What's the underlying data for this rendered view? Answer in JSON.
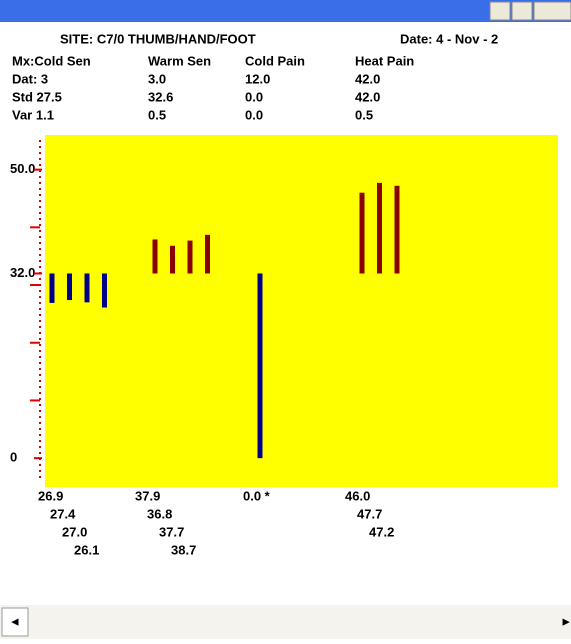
{
  "header": {
    "title": "SITE: C7/0  THUMB/HAND/FOOT",
    "date": "Date: 4 - Nov - 2"
  },
  "table": {
    "columns": [
      "Mx:Cold Sen",
      "Warm Sen",
      "Cold Pain",
      "Heat Pain"
    ],
    "rows": [
      [
        "Dat: 3",
        "3.0",
        "12.0",
        "42.0"
      ],
      [
        "Std 27.5",
        "32.6",
        "0.0",
        "42.0"
      ],
      [
        "Var 1.1",
        "0.5",
        "0.0",
        "0.5"
      ]
    ]
  },
  "chart_data": {
    "type": "bar",
    "baseline": 32,
    "ylim": [
      -5,
      56
    ],
    "yticks": [
      {
        "value": 50,
        "label": "50.0"
      },
      {
        "value": 32,
        "label": "32.0"
      },
      0
    ],
    "minor_yticks": [
      10,
      20,
      30,
      40
    ],
    "series": [
      {
        "name": "Cold Sen",
        "color": "#00008b",
        "values": [
          26.9,
          27.4,
          27.0,
          26.1
        ],
        "value_labels": [
          "26.9",
          "27.4",
          "27.0",
          "26.1"
        ]
      },
      {
        "name": "Warm Sen",
        "color": "#8b0000",
        "values": [
          37.9,
          36.8,
          37.7,
          38.7
        ],
        "value_labels": [
          "37.9",
          "36.8",
          "37.7",
          "38.7"
        ]
      },
      {
        "name": "Cold Pain",
        "color": "#00008b",
        "values": [
          0.0
        ],
        "value_labels": [
          "0.0 *"
        ]
      },
      {
        "name": "Heat Pain",
        "color": "#8b0000",
        "values": [
          46.0,
          47.7,
          47.2
        ],
        "value_labels": [
          "46.0",
          "47.7",
          "47.2"
        ]
      }
    ]
  }
}
